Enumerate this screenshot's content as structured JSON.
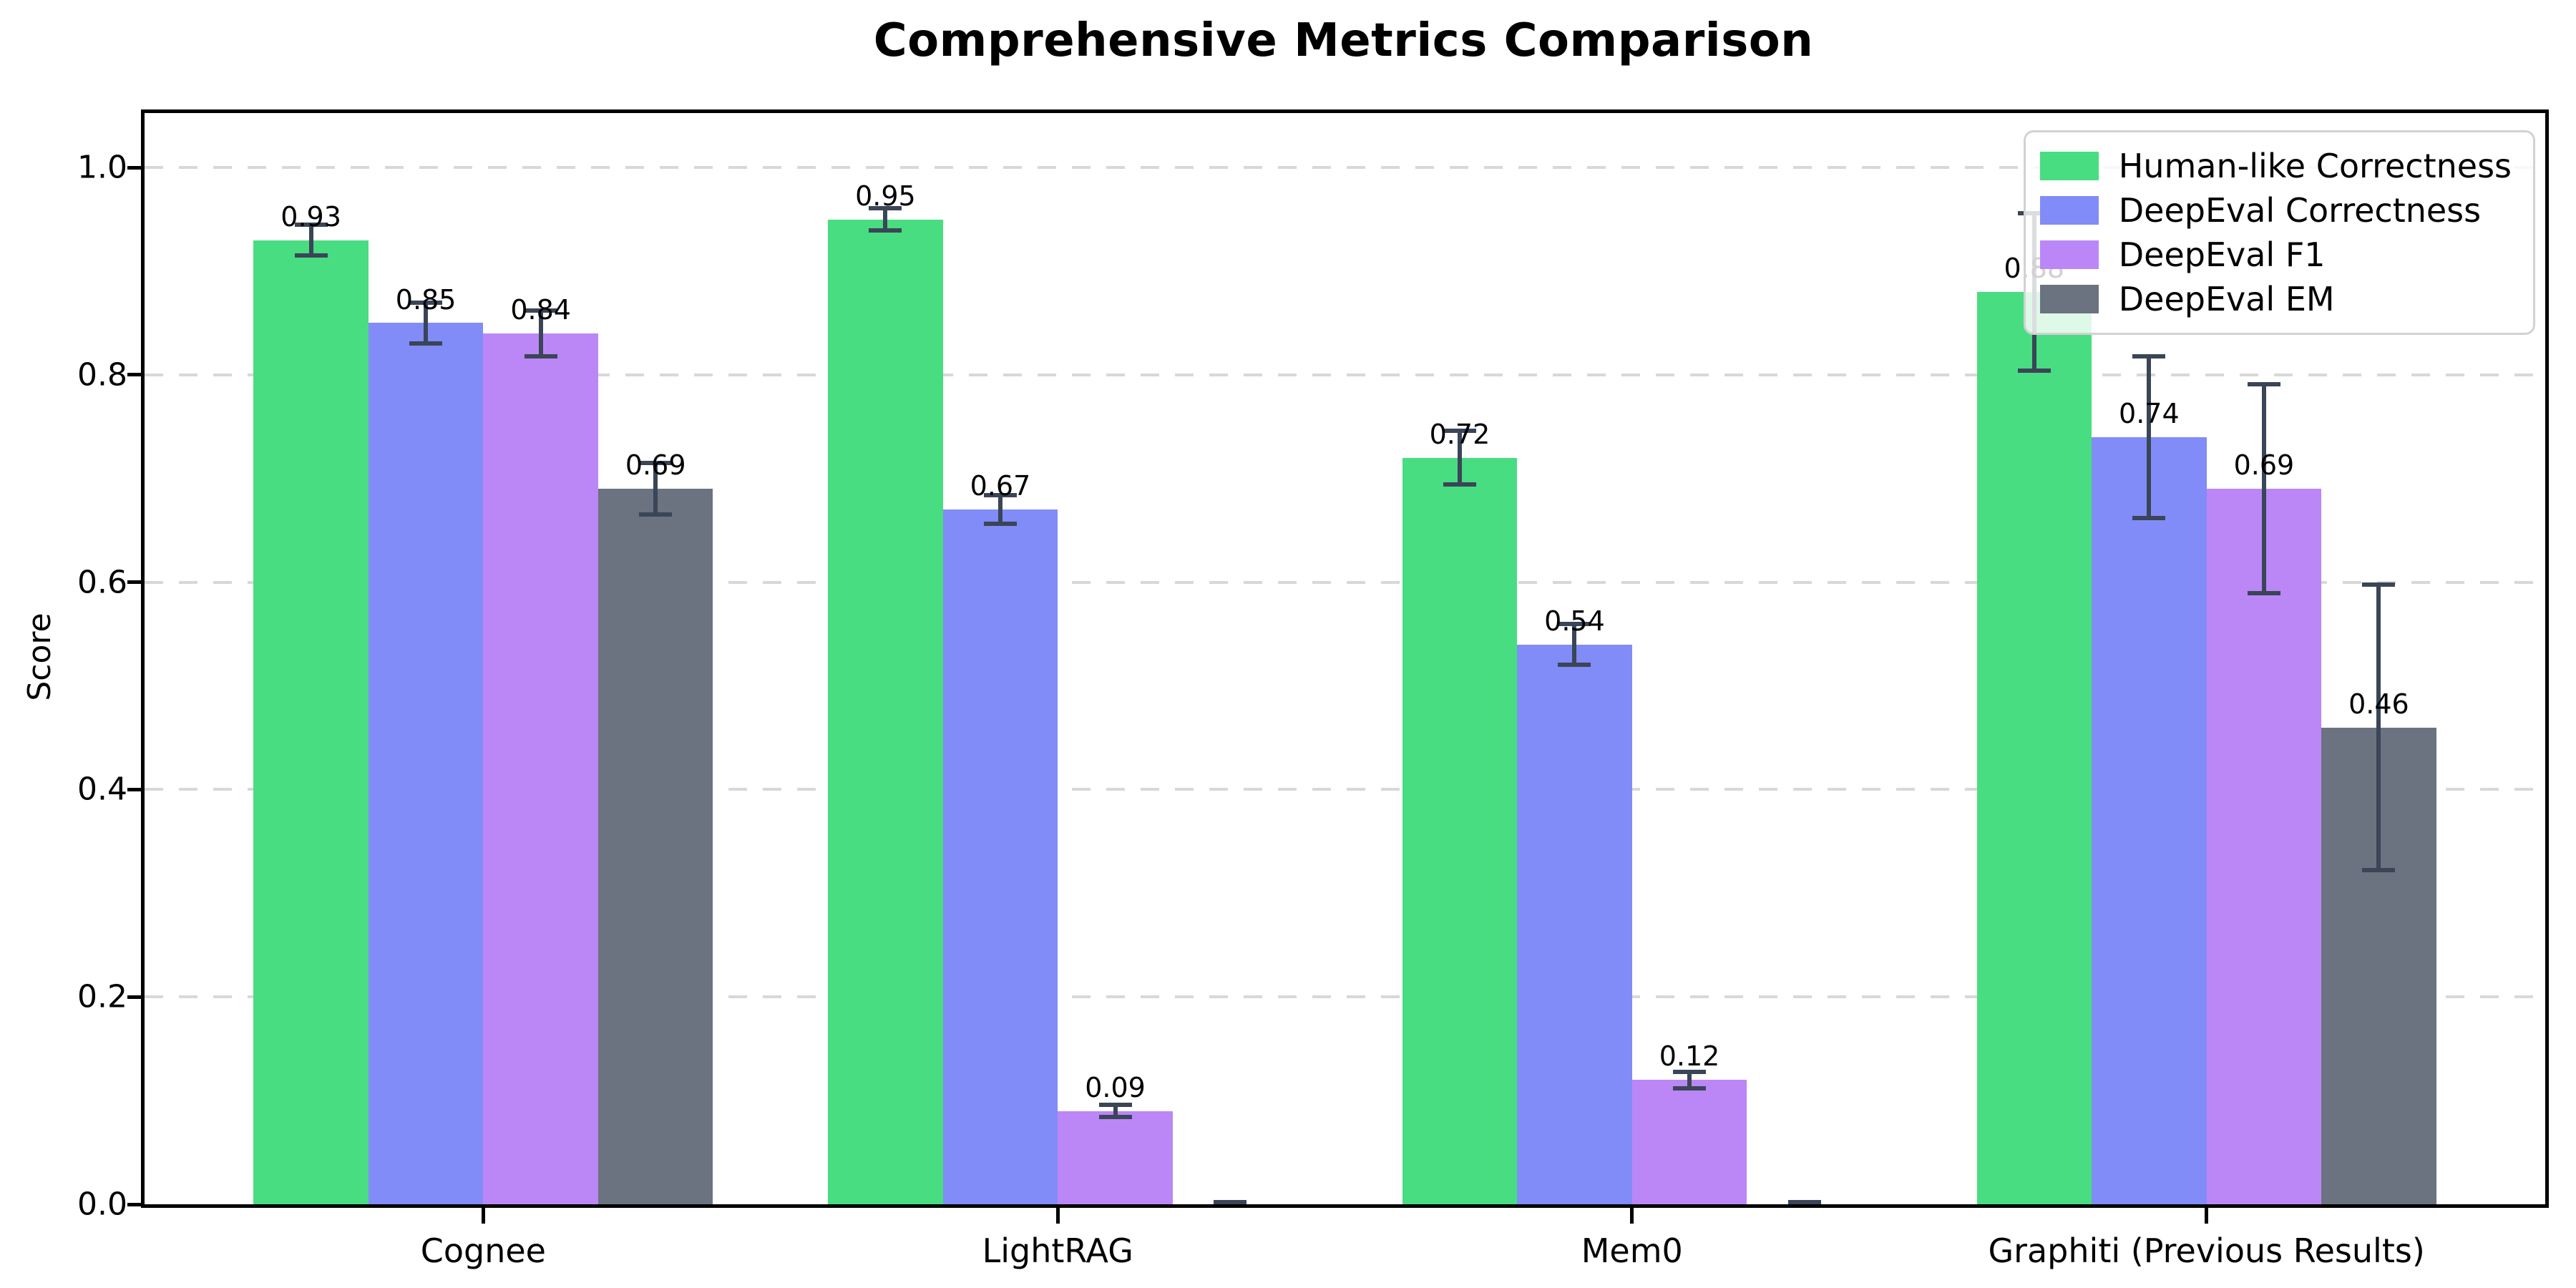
{
  "title": "Comprehensive Metrics Comparison",
  "chart_data": {
    "type": "bar",
    "title": "Comprehensive Metrics Comparison",
    "xlabel": "",
    "ylabel": "Score",
    "ylim": [
      0,
      1.05
    ],
    "grid": "horizontal dashed",
    "legend_position": "upper right",
    "categories": [
      "Cognee",
      "LightRAG",
      "Mem0",
      "Graphiti (Previous Results)"
    ],
    "y_ticks": [
      "0.0",
      "0.2",
      "0.4",
      "0.6",
      "0.8",
      "1.0"
    ],
    "y_tick_values": [
      0.0,
      0.2,
      0.4,
      0.6,
      0.8,
      1.0
    ],
    "series": [
      {
        "name": "Human-like Correctness",
        "color": "#48dd81",
        "values": [
          0.93,
          0.95,
          0.72,
          0.88
        ],
        "errors": [
          0.017,
          0.013,
          0.028,
          0.078
        ]
      },
      {
        "name": "DeepEval Correctness",
        "color": "#818cf8",
        "values": [
          0.85,
          0.67,
          0.54,
          0.74
        ],
        "errors": [
          0.022,
          0.016,
          0.022,
          0.08
        ]
      },
      {
        "name": "DeepEval F1",
        "color": "#bb87f7",
        "values": [
          0.84,
          0.09,
          0.12,
          0.69
        ],
        "errors": [
          0.024,
          0.008,
          0.01,
          0.103
        ]
      },
      {
        "name": "DeepEval EM",
        "color": "#6b7280",
        "values": [
          0.69,
          0.0,
          0.0,
          0.46
        ],
        "errors": [
          0.027,
          0.004,
          0.004,
          0.14
        ]
      }
    ],
    "bar_value_labels": [
      [
        "0.93",
        "0.85",
        "0.84",
        "0.69"
      ],
      [
        "0.95",
        "0.67",
        "0.09",
        ""
      ],
      [
        "0.72",
        "0.54",
        "0.12",
        ""
      ],
      [
        "0.88",
        "0.74",
        "0.69",
        "0.46"
      ]
    ],
    "error_bar_color": "#3a4557",
    "gridline_color": "#d8d8d8",
    "background_color": "#ffffff"
  }
}
